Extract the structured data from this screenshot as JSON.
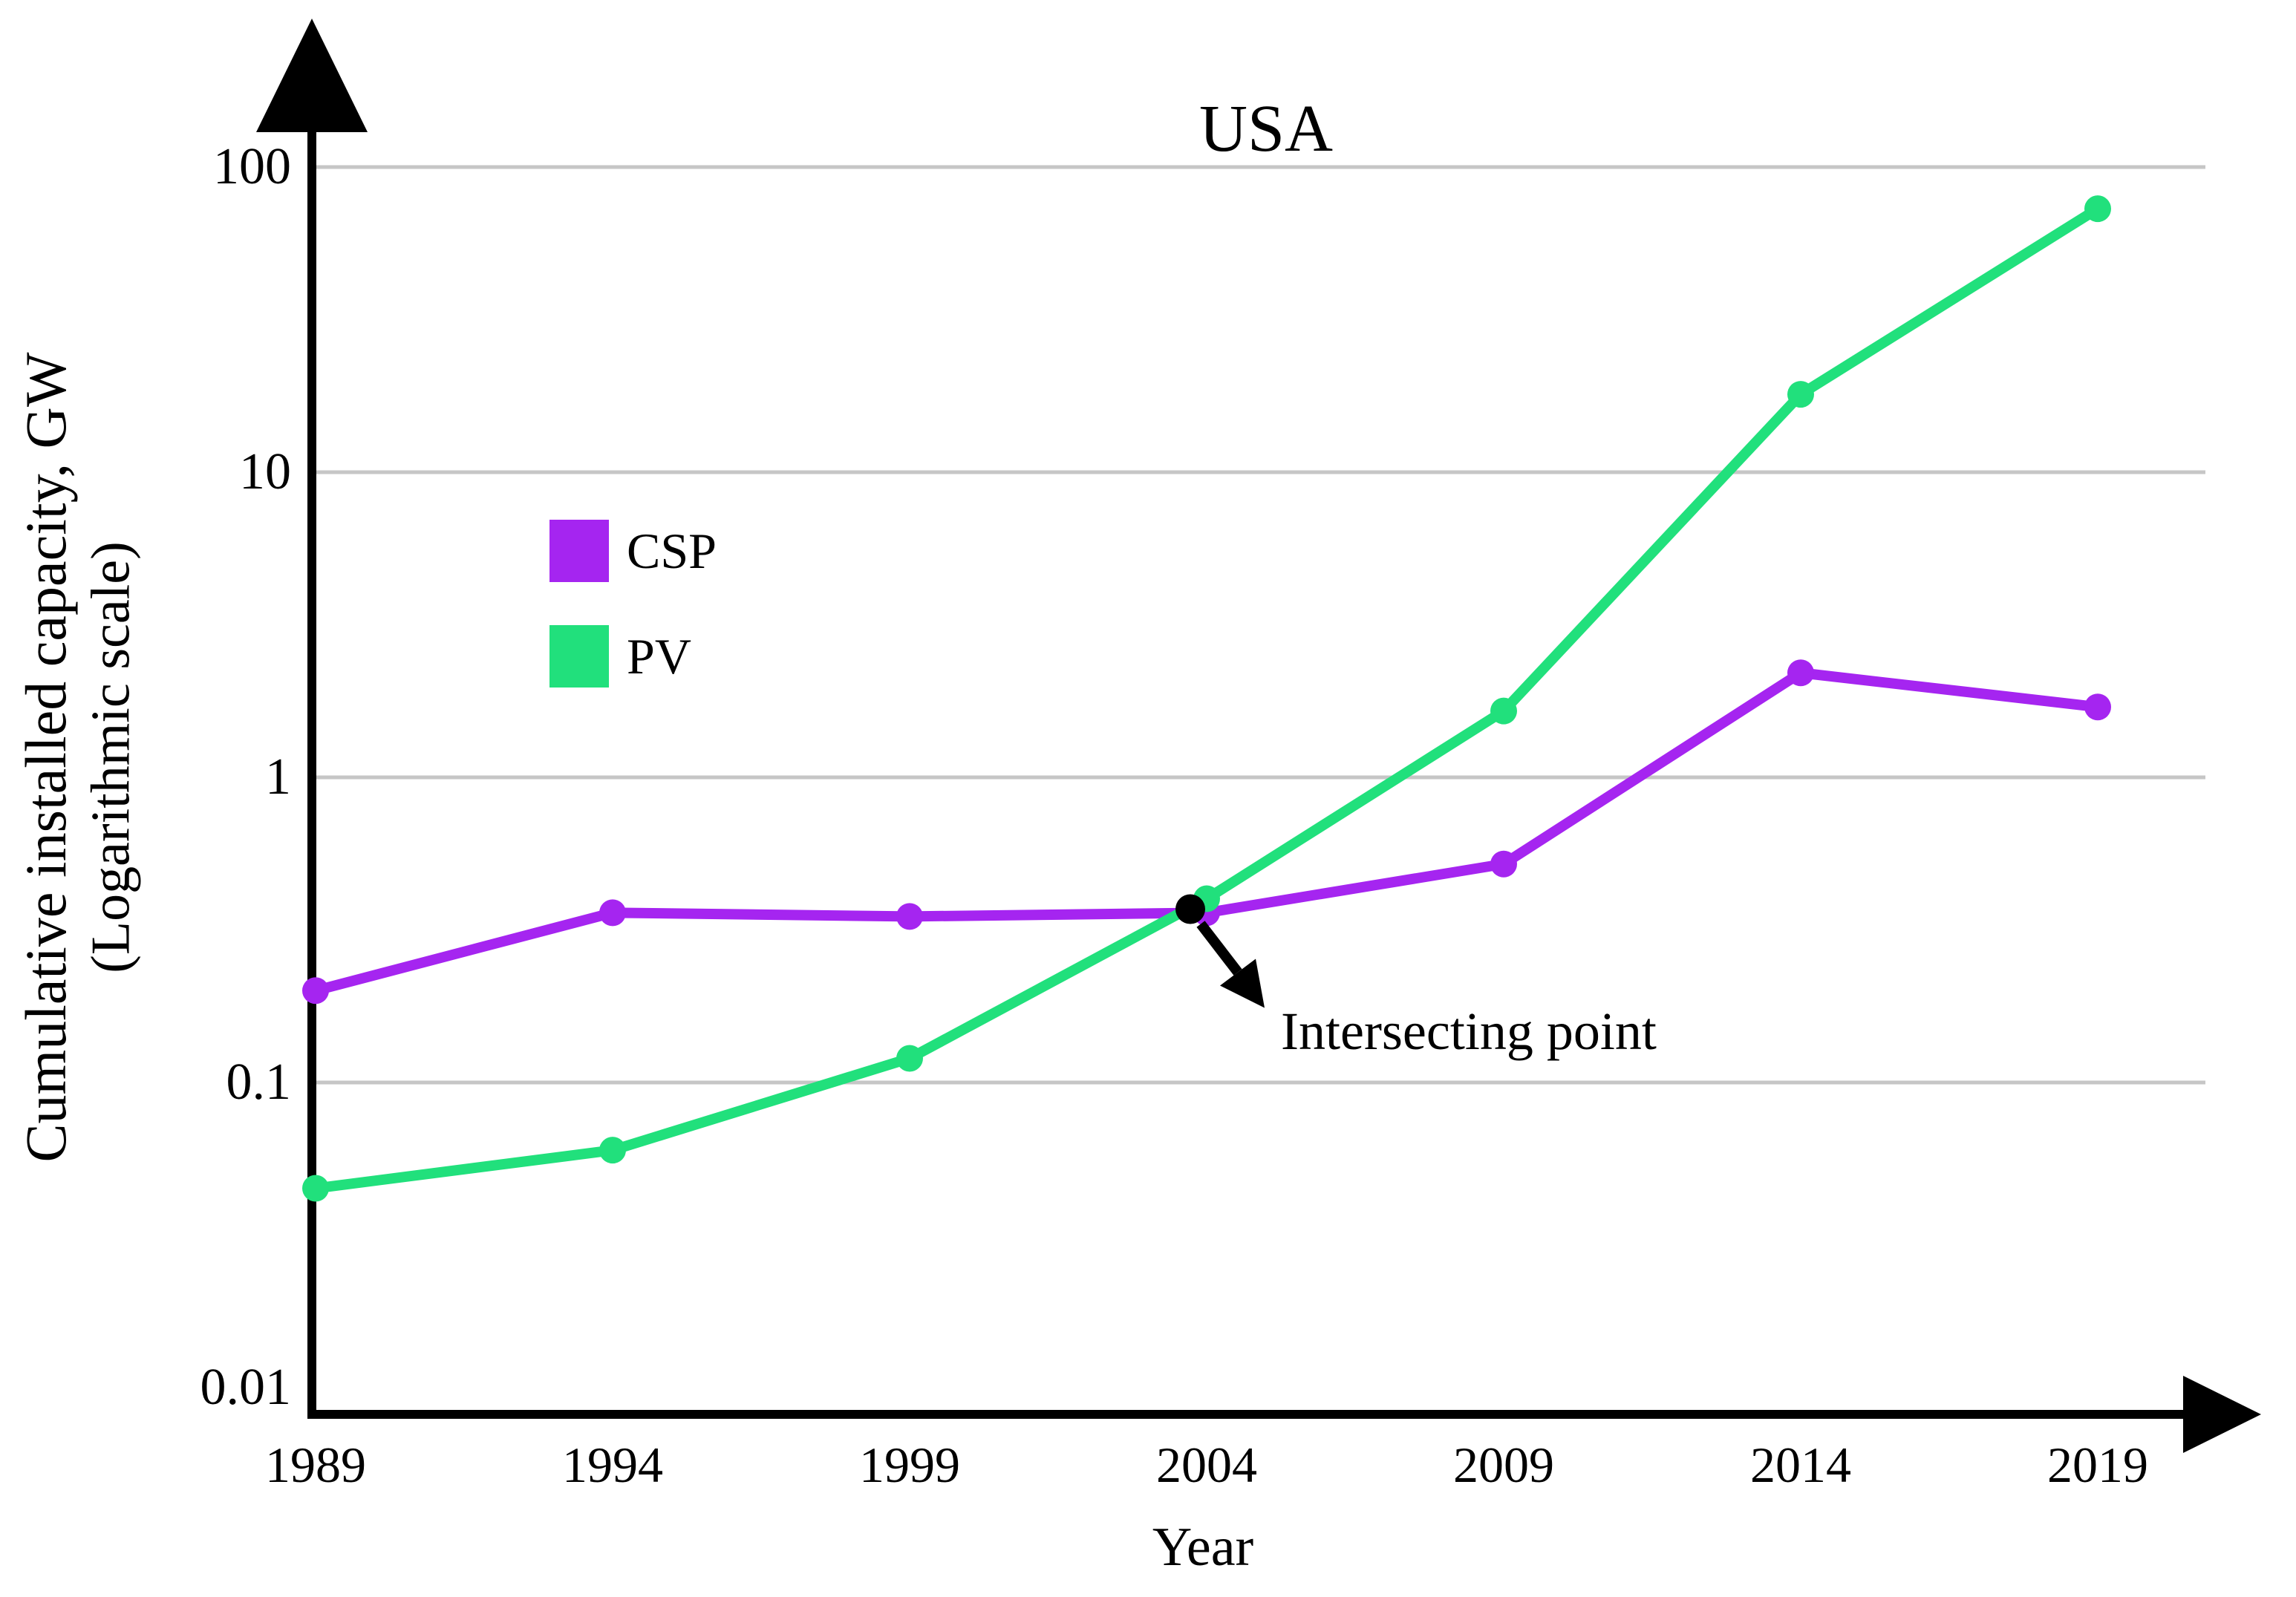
{
  "page": {
    "background": "#ffffff"
  },
  "chart_data": {
    "type": "line",
    "title": "USA",
    "xlabel": "Year",
    "ylabel_line1": "Cumulative installed capacity, GW",
    "ylabel_line2": "(Logarithmic scale)",
    "x_categories": [
      "1989",
      "1994",
      "1999",
      "2004",
      "2009",
      "2014",
      "2019"
    ],
    "x_values": [
      1989,
      1994,
      1999,
      2004,
      2009,
      2014,
      2019
    ],
    "y_scale": "log10",
    "ylim": [
      0.01,
      100
    ],
    "y_ticks": [
      "100",
      "10",
      "1",
      "0.1",
      "0.01"
    ],
    "y_tick_values": [
      100,
      10,
      1,
      0.1,
      0.01
    ],
    "grid": "horizontal",
    "gridline_color": "#c6c6c6",
    "axis_color": "#000000",
    "legend_position": "upper-left-inside",
    "series": [
      {
        "name": "CSP",
        "color": "#a525f0",
        "values": [
          0.2,
          0.36,
          0.35,
          0.36,
          0.52,
          2.2,
          1.7
        ]
      },
      {
        "name": "PV",
        "color": "#21e07c",
        "values": [
          0.045,
          0.06,
          0.12,
          0.4,
          1.65,
          18,
          73
        ]
      }
    ],
    "annotation": {
      "label": "Intersecting point",
      "year": 2004,
      "value": 0.37,
      "marker_color": "#000000"
    }
  }
}
